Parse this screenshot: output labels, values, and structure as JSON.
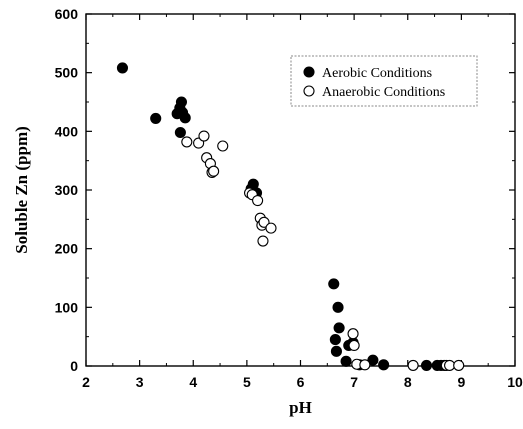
{
  "chart_data": {
    "type": "scatter",
    "title": "",
    "xlabel": "pH",
    "ylabel": "Soluble Zn (ppm)",
    "xlim": [
      2,
      10
    ],
    "ylim": [
      0,
      600
    ],
    "xticks": [
      "2",
      "3",
      "4",
      "5",
      "6",
      "7",
      "8",
      "9",
      "10"
    ],
    "yticks": [
      "0",
      "100",
      "200",
      "300",
      "400",
      "500",
      "600"
    ],
    "grid": false,
    "legend_position": "top-right",
    "series": [
      {
        "name": "Aerobic Conditions",
        "marker": "filled-circle",
        "color": "#000000",
        "points": [
          [
            2.68,
            508
          ],
          [
            3.3,
            422
          ],
          [
            3.7,
            430
          ],
          [
            3.75,
            440
          ],
          [
            3.78,
            450
          ],
          [
            3.8,
            432
          ],
          [
            3.85,
            423
          ],
          [
            3.76,
            398
          ],
          [
            5.08,
            302
          ],
          [
            5.12,
            310
          ],
          [
            5.18,
            295
          ],
          [
            6.62,
            140
          ],
          [
            6.65,
            45
          ],
          [
            6.7,
            100
          ],
          [
            6.72,
            65
          ],
          [
            6.67,
            25
          ],
          [
            6.85,
            8
          ],
          [
            6.9,
            35
          ],
          [
            6.98,
            40
          ],
          [
            7.1,
            2
          ],
          [
            7.35,
            10
          ],
          [
            7.55,
            2
          ],
          [
            8.35,
            1
          ],
          [
            8.55,
            1
          ],
          [
            8.62,
            1
          ],
          [
            8.68,
            1
          ]
        ]
      },
      {
        "name": "Anaerobic Conditions",
        "marker": "open-circle",
        "color": "#000000",
        "points": [
          [
            3.88,
            382
          ],
          [
            4.1,
            380
          ],
          [
            4.2,
            392
          ],
          [
            4.25,
            355
          ],
          [
            4.32,
            345
          ],
          [
            4.35,
            330
          ],
          [
            4.38,
            332
          ],
          [
            4.55,
            375
          ],
          [
            5.05,
            295
          ],
          [
            5.1,
            292
          ],
          [
            5.2,
            282
          ],
          [
            5.25,
            252
          ],
          [
            5.28,
            240
          ],
          [
            5.3,
            213
          ],
          [
            5.32,
            245
          ],
          [
            5.45,
            235
          ],
          [
            6.98,
            55
          ],
          [
            7.0,
            35
          ],
          [
            7.05,
            3
          ],
          [
            7.2,
            2
          ],
          [
            8.1,
            1
          ],
          [
            8.72,
            1
          ],
          [
            8.78,
            1
          ],
          [
            8.95,
            1
          ]
        ]
      }
    ]
  }
}
